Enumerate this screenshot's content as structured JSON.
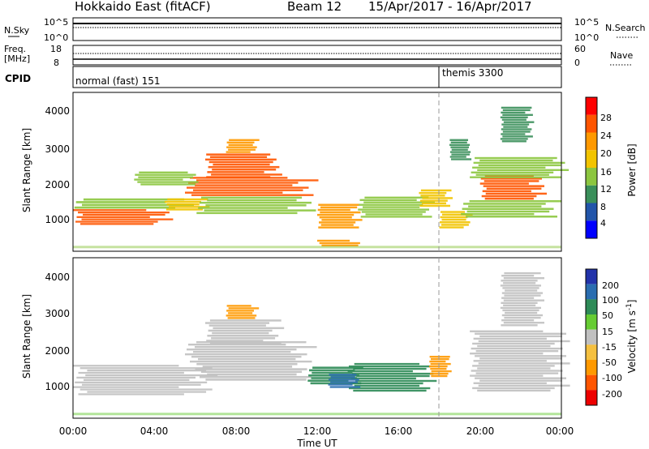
{
  "header": {
    "radar": "Hokkaido East (fitACF)",
    "beam": "Beam 12",
    "date_range": "15/Apr/2017 - 16/Apr/2017"
  },
  "summary": {
    "nsky_label": "N.Sky",
    "nsky_ticks": [
      "10^5",
      "10^0"
    ],
    "nsearch_label": "N.Search",
    "nsearch_ticks": [
      "10^5",
      "10^0"
    ],
    "freq_label_1": "Freq.",
    "freq_label_2": "[MHz]",
    "freq_ticks": [
      "18",
      "8"
    ],
    "nave_label": "Nave",
    "nave_ticks": [
      "60",
      "0"
    ],
    "cpid_label": "CPID",
    "cpid_modes": [
      {
        "name": "normal (fast) 151",
        "start_hour": 0
      },
      {
        "name": "themis 3300",
        "start_hour": 18
      }
    ]
  },
  "axes": {
    "xlabel": "Time UT",
    "ylabel": "Slant Range [km]",
    "x_ticks": [
      "00:00",
      "04:00",
      "08:00",
      "12:00",
      "16:00",
      "20:00",
      "00:00"
    ],
    "y_ticks": [
      "1000",
      "2000",
      "3000",
      "4000"
    ]
  },
  "power_scale": {
    "label": "Power [dB]",
    "ticks": [
      "4",
      "8",
      "12",
      "16",
      "20",
      "24",
      "28"
    ],
    "colors": [
      "#0000ff",
      "#2255aa",
      "#3a8f5a",
      "#8cc63f",
      "#f2c400",
      "#ff9900",
      "#ff5500",
      "#ff0000"
    ]
  },
  "velocity_scale": {
    "label": "Velocity [m s",
    "label_sup": "-1",
    "label_end": "]",
    "ticks": [
      "200",
      "100",
      "50",
      "15",
      "-15",
      "-50",
      "-100",
      "-200"
    ],
    "colors": [
      "#2233aa",
      "#2a6db0",
      "#2e8b57",
      "#66cc33",
      "#c0c0c0",
      "#f5c040",
      "#ff9900",
      "#ff5500",
      "#ee0000"
    ]
  },
  "chart_data": [
    {
      "type": "heatmap",
      "title": "Hokkaido East (fitACF) Beam 12 15/Apr/2017 - 16/Apr/2017",
      "parameter": "Power [dB]",
      "xlabel": "Time UT",
      "ylabel": "Slant Range [km]",
      "xlim": [
        0,
        24
      ],
      "ylim": [
        180,
        4600
      ],
      "clim": [
        0,
        30
      ],
      "regions": [
        {
          "x0": 0.0,
          "x1": 4.5,
          "y0": 900,
          "y1": 1350,
          "value": 24
        },
        {
          "x0": 0.0,
          "x1": 5.5,
          "y0": 1350,
          "y1": 1650,
          "value": 15
        },
        {
          "x0": 4.5,
          "x1": 6.5,
          "y0": 1300,
          "y1": 1650,
          "value": 17
        },
        {
          "x0": 5.5,
          "x1": 11.5,
          "y0": 1700,
          "y1": 2250,
          "value": 26
        },
        {
          "x0": 6.5,
          "x1": 10.0,
          "y0": 2200,
          "y1": 2900,
          "value": 27
        },
        {
          "x0": 7.5,
          "x1": 9.0,
          "y0": 2900,
          "y1": 3300,
          "value": 20
        },
        {
          "x0": 3.0,
          "x1": 6.0,
          "y0": 2000,
          "y1": 2400,
          "value": 12
        },
        {
          "x0": 6.0,
          "x1": 11.5,
          "y0": 1200,
          "y1": 1700,
          "value": 14
        },
        {
          "x0": 12.0,
          "x1": 14.0,
          "y0": 800,
          "y1": 1500,
          "value": 20
        },
        {
          "x0": 12.0,
          "x1": 14.0,
          "y0": 300,
          "y1": 500,
          "value": 22
        },
        {
          "x0": 14.0,
          "x1": 17.5,
          "y0": 1100,
          "y1": 1700,
          "value": 12
        },
        {
          "x0": 17.0,
          "x1": 18.5,
          "y0": 1400,
          "y1": 1900,
          "value": 18
        },
        {
          "x0": 18.0,
          "x1": 19.5,
          "y0": 800,
          "y1": 1300,
          "value": 16
        },
        {
          "x0": 18.5,
          "x1": 19.5,
          "y0": 2700,
          "y1": 3300,
          "value": 10
        },
        {
          "x0": 19.0,
          "x1": 23.5,
          "y0": 1100,
          "y1": 1600,
          "value": 15
        },
        {
          "x0": 20.0,
          "x1": 23.0,
          "y0": 1600,
          "y1": 2300,
          "value": 26
        },
        {
          "x0": 19.5,
          "x1": 24.0,
          "y0": 2200,
          "y1": 2800,
          "value": 12
        },
        {
          "x0": 21.0,
          "x1": 22.5,
          "y0": 3200,
          "y1": 4200,
          "value": 10
        }
      ]
    },
    {
      "type": "heatmap",
      "parameter": "Velocity [m s-1]",
      "xlabel": "Time UT",
      "ylabel": "Slant Range [km]",
      "xlim": [
        0,
        24
      ],
      "ylim": [
        180,
        4600
      ],
      "clim": [
        -200,
        200
      ],
      "regions": [
        {
          "x0": 0.0,
          "x1": 6.5,
          "y0": 800,
          "y1": 1650,
          "value": 0
        },
        {
          "x0": 5.5,
          "x1": 11.5,
          "y0": 1700,
          "y1": 2300,
          "value": 0
        },
        {
          "x0": 6.5,
          "x1": 10.0,
          "y0": 2200,
          "y1": 2900,
          "value": 0
        },
        {
          "x0": 7.5,
          "x1": 9.0,
          "y0": 2900,
          "y1": 3300,
          "value": -40
        },
        {
          "x0": 6.0,
          "x1": 11.5,
          "y0": 1200,
          "y1": 1700,
          "value": 0
        },
        {
          "x0": 11.5,
          "x1": 14.0,
          "y0": 1100,
          "y1": 1600,
          "value": 40
        },
        {
          "x0": 13.5,
          "x1": 17.5,
          "y0": 900,
          "y1": 1700,
          "value": 45
        },
        {
          "x0": 12.5,
          "x1": 14.0,
          "y0": 1000,
          "y1": 1400,
          "value": 120
        },
        {
          "x0": 17.5,
          "x1": 18.5,
          "y0": 1300,
          "y1": 1900,
          "value": -60
        },
        {
          "x0": 19.5,
          "x1": 24.0,
          "y0": 900,
          "y1": 2600,
          "value": 0
        },
        {
          "x0": 21.0,
          "x1": 23.0,
          "y0": 2700,
          "y1": 4200,
          "value": 0
        }
      ]
    }
  ]
}
